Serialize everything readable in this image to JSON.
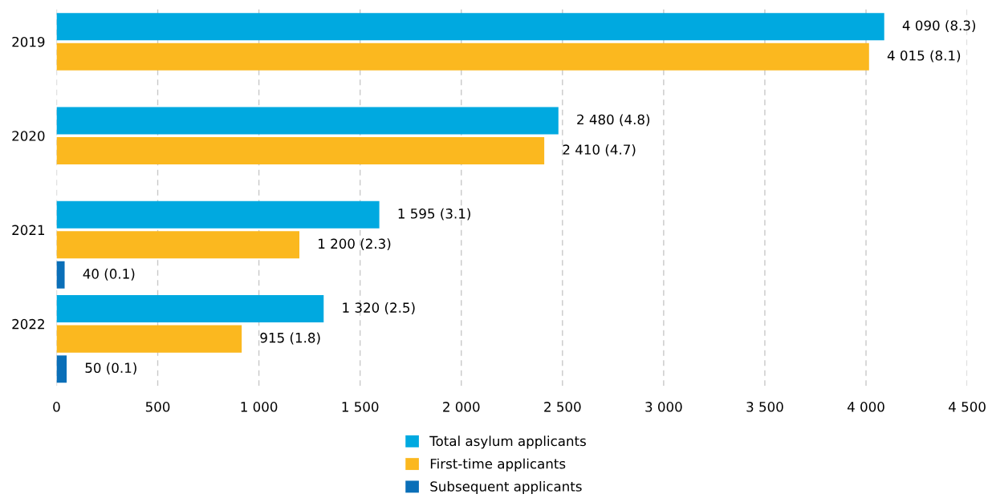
{
  "chart_data": {
    "type": "bar",
    "orientation": "horizontal",
    "categories": [
      "2019",
      "2020",
      "2021",
      "2022"
    ],
    "series": [
      {
        "name": "Total asylum applicants",
        "color": "#00a9e0",
        "values": [
          4090,
          2480,
          1595,
          1320
        ],
        "value_labels": [
          "4 090 (8.3)",
          "2 480 (4.8)",
          "1 595 (3.1)",
          "1 320 (2.5)"
        ]
      },
      {
        "name": "First-time applicants",
        "color": "#fbb81f",
        "values": [
          4015,
          2410,
          1200,
          915
        ],
        "value_labels": [
          "4 015 (8.1)",
          "2 410 (4.7)",
          "1 200 (2.3)",
          "915 (1.8)"
        ]
      },
      {
        "name": "Subsequent applicants",
        "color": "#0a6fb8",
        "values": [
          null,
          null,
          40,
          50
        ],
        "value_labels": [
          null,
          null,
          "40 (0.1)",
          "50 (0.1)"
        ]
      }
    ],
    "xlim": [
      0,
      4500
    ],
    "xticks": [
      0,
      500,
      {
        "value": 1000,
        "label": "1 000"
      },
      {
        "value": 1500,
        "label": "1 500"
      },
      {
        "value": 2000,
        "label": "2 000"
      },
      {
        "value": 2500,
        "label": "2 500"
      },
      {
        "value": 3000,
        "label": "3 000"
      },
      {
        "value": 3500,
        "label": "3 500"
      },
      {
        "value": 4000,
        "label": "4 000"
      },
      {
        "value": 4500,
        "label": "4 500"
      }
    ],
    "grid": "x",
    "legend": "bottom"
  }
}
